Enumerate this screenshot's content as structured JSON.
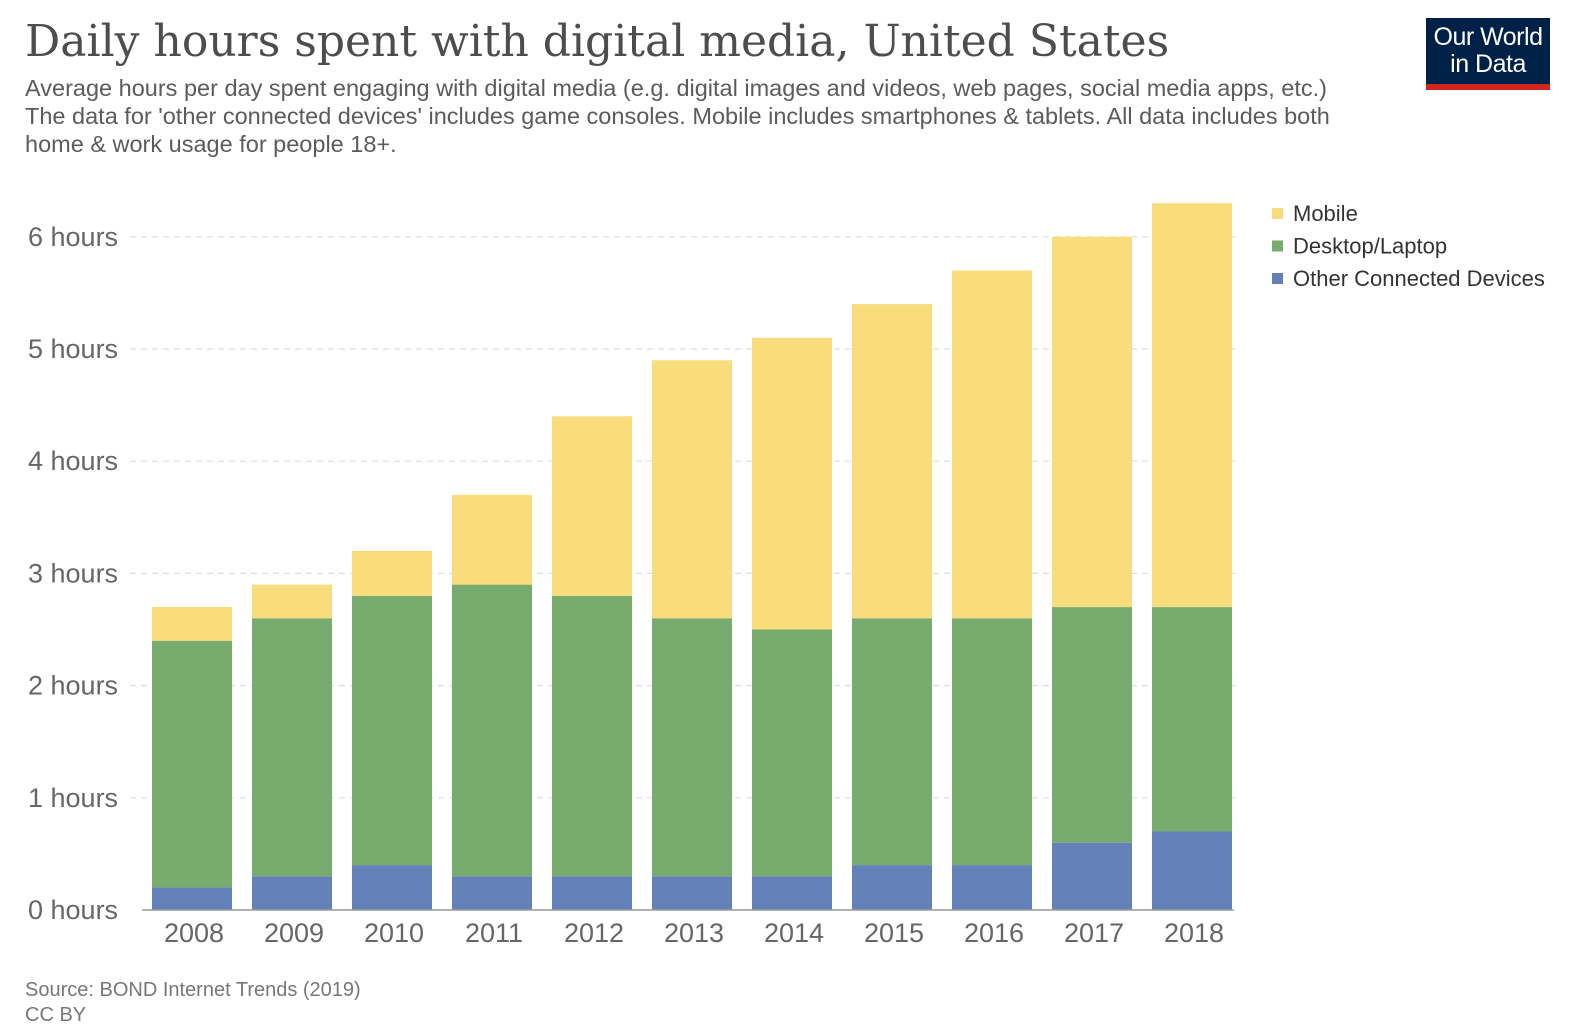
{
  "header": {
    "title": "Daily hours spent with digital media, United States",
    "subtitle": "Average hours per day spent engaging with digital media (e.g. digital images and videos, web pages, social media apps, etc.) The data for 'other connected devices' includes game consoles. Mobile includes smartphones & tablets. All data includes both home & work usage for people 18+."
  },
  "logo": {
    "line1": "Our World",
    "line2": "in Data"
  },
  "footer": {
    "source": "Source: BOND Internet Trends (2019)",
    "license": "CC BY"
  },
  "chart_data": {
    "type": "bar",
    "stacked": true,
    "title": "Daily hours spent with digital media, United States",
    "categories": [
      "2008",
      "2009",
      "2010",
      "2011",
      "2012",
      "2013",
      "2014",
      "2015",
      "2016",
      "2017",
      "2018"
    ],
    "series": [
      {
        "name": "Other Connected Devices",
        "color": "#6380b9",
        "values": [
          0.2,
          0.3,
          0.4,
          0.3,
          0.3,
          0.3,
          0.3,
          0.4,
          0.4,
          0.6,
          0.7
        ]
      },
      {
        "name": "Desktop/Laptop",
        "color": "#78ac6e",
        "values": [
          2.2,
          2.3,
          2.4,
          2.6,
          2.5,
          2.3,
          2.2,
          2.2,
          2.2,
          2.1,
          2.0
        ]
      },
      {
        "name": "Mobile",
        "color": "#f9dc7b",
        "values": [
          0.3,
          0.3,
          0.4,
          0.8,
          1.6,
          2.3,
          2.6,
          2.8,
          3.1,
          3.3,
          3.6
        ]
      }
    ],
    "legend_order": [
      "Mobile",
      "Desktop/Laptop",
      "Other Connected Devices"
    ],
    "y_ticks": [
      {
        "value": 0,
        "label": "0 hours"
      },
      {
        "value": 1,
        "label": "1 hours"
      },
      {
        "value": 2,
        "label": "2 hours"
      },
      {
        "value": 3,
        "label": "3 hours"
      },
      {
        "value": 4,
        "label": "4 hours"
      },
      {
        "value": 5,
        "label": "5 hours"
      },
      {
        "value": 6,
        "label": "6 hours"
      }
    ],
    "ylim": [
      0,
      6.3
    ],
    "xlabel": "",
    "ylabel": "",
    "grid": true,
    "legend_position": "right"
  }
}
